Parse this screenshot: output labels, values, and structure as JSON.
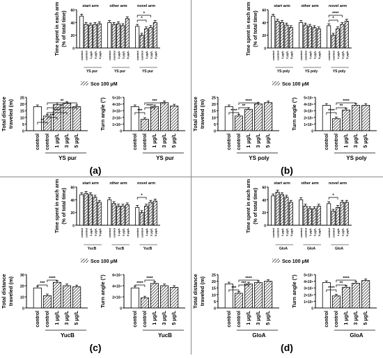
{
  "legend_label": "Sco 100 μM",
  "panels": [
    {
      "letter": "(a)",
      "compound": "YS pur",
      "arms": {
        "type": "bar",
        "ylabel": "Time spent in each arm",
        "ylabel2": "(% of total time)",
        "groups": [
          "start arm",
          "other arm",
          "novel arm"
        ],
        "categories": [
          "control",
          "control",
          "1 μg/L",
          "3 μg/L",
          "5 μg/L"
        ],
        "ylim": [
          0,
          60
        ],
        "yticks": [
          0,
          20,
          40,
          60
        ],
        "values": [
          [
            50,
            37,
            36,
            37,
            38
          ],
          [
            40,
            37,
            38,
            35,
            46
          ],
          [
            34,
            20,
            30,
            32,
            40
          ]
        ],
        "sig": [
          "*",
          "*"
        ]
      },
      "distance": {
        "type": "bar",
        "ylabel": "Total distance",
        "ylabel2": "traveled (m)",
        "categories": [
          "control",
          "control",
          "1 μg/L",
          "3 μg/L",
          "5 μg/L"
        ],
        "ylim": [
          0,
          25
        ],
        "yticks": [
          0,
          5,
          10,
          15,
          20,
          25
        ],
        "values": [
          18,
          11,
          19.5,
          20.5,
          18
        ],
        "sig": [
          "**",
          "***",
          "****",
          "*",
          "**"
        ]
      },
      "turn": {
        "type": "bar",
        "ylabel": "Turn angle (°)",
        "categories": [
          "control",
          "control",
          "1 μg/L",
          "3 μg/L",
          "5 μg/L"
        ],
        "ylim": [
          0,
          50000
        ],
        "yticks": [
          "0",
          "1×10⁴",
          "2×10⁴",
          "3×10⁴",
          "4×10⁴",
          "5×10⁴"
        ],
        "values": [
          36000,
          17000,
          36000,
          42000,
          37000
        ],
        "sig": [
          "***",
          "****",
          "***"
        ]
      }
    },
    {
      "letter": "(b)",
      "compound": "YS poly",
      "arms": {
        "type": "bar",
        "ylabel": "Time spent in each arm",
        "ylabel2": "(% of total time)",
        "groups": [
          "start arm",
          "other arm",
          "novel arm"
        ],
        "categories": [
          "control",
          "control",
          "1 μg/L",
          "3 μg/L",
          "5 μg/L"
        ],
        "ylim": [
          0,
          60
        ],
        "yticks": [
          0,
          20,
          40,
          60
        ],
        "values": [
          [
            50,
            42,
            40,
            36,
            32
          ],
          [
            40,
            36,
            34,
            32,
            30
          ],
          [
            35,
            20,
            30,
            37,
            42
          ]
        ],
        "sig": [
          "*",
          "****"
        ]
      },
      "distance": {
        "type": "bar",
        "ylabel": "Total distance",
        "ylabel2": "traveled (m)",
        "categories": [
          "control",
          "control",
          "1 μg/L",
          "3 μg/L",
          "5 μg/L"
        ],
        "ylim": [
          0,
          25
        ],
        "yticks": [
          0,
          5,
          10,
          15,
          20,
          25
        ],
        "values": [
          18,
          11,
          16,
          20,
          21
        ],
        "sig": [
          "****",
          "**",
          "****"
        ]
      },
      "turn": {
        "type": "bar",
        "ylabel": "Turn angle (°)",
        "categories": [
          "control",
          "control",
          "1 μg/L",
          "3 μg/L",
          "5 μg/L"
        ],
        "ylim": [
          0,
          50000
        ],
        "yticks": [
          "0",
          "1×10⁴",
          "2×10⁴",
          "3×10⁴",
          "4×10⁴",
          "5×10⁴"
        ],
        "values": [
          38000,
          18000,
          31000,
          38000,
          38000
        ],
        "sig": [
          "****",
          "**",
          "****"
        ]
      }
    },
    {
      "letter": "(c)",
      "compound": "YucB",
      "arms": {
        "type": "bar",
        "ylabel": "Time spent in each arm",
        "ylabel2": "(% of total time)",
        "groups": [
          "start arm",
          "other arm",
          "novel arm"
        ],
        "categories": [
          "control",
          "control",
          "1 μg/L",
          "3 μg/L",
          "5 μg/L"
        ],
        "ylim": [
          0,
          60
        ],
        "yticks": [
          0,
          20,
          40,
          60
        ],
        "values": [
          [
            48,
            50,
            48,
            44,
            36
          ],
          [
            40,
            34,
            30,
            30,
            32
          ],
          [
            28,
            20,
            30,
            36,
            38
          ]
        ],
        "sig": [
          "*",
          ""
        ]
      },
      "distance": {
        "type": "bar",
        "ylabel": "Total distance",
        "ylabel2": "traveled (m)",
        "categories": [
          "control",
          "control",
          "1 μg/L",
          "3 μg/L",
          "5 μg/L"
        ],
        "ylim": [
          0,
          30
        ],
        "yticks": [
          0,
          10,
          20,
          30
        ],
        "values": [
          18,
          11,
          23,
          20,
          19
        ],
        "sig": [
          "***",
          "****"
        ]
      },
      "turn": {
        "type": "bar",
        "ylabel": "Turn angle (°)",
        "categories": [
          "control",
          "control",
          "1 μg/L",
          "3 μg/L",
          "5 μg/L"
        ],
        "ylim": [
          0,
          60000
        ],
        "yticks": [
          "0",
          "2×10⁴",
          "4×10⁴",
          "6×10⁴"
        ],
        "values": [
          36000,
          18000,
          44000,
          40000,
          37000
        ],
        "sig": [
          "****",
          "****"
        ]
      }
    },
    {
      "letter": "(d)",
      "compound": "GloA",
      "arms": {
        "type": "bar",
        "ylabel": "Time spent in each arm",
        "ylabel2": "(% of total time)",
        "groups": [
          "start arm",
          "other arm",
          "novel arm"
        ],
        "categories": [
          "control",
          "control",
          "1 μg/L",
          "3 μg/L",
          "5 μg/L"
        ],
        "ylim": [
          0,
          60
        ],
        "yticks": [
          0,
          20,
          40,
          60
        ],
        "values": [
          [
            46,
            52,
            48,
            44,
            36
          ],
          [
            40,
            30,
            26,
            26,
            30
          ],
          [
            34,
            22,
            28,
            36,
            36
          ]
        ],
        "sig": [
          "*",
          ""
        ]
      },
      "distance": {
        "type": "bar",
        "ylabel": "Total distance",
        "ylabel2": "traveled (m)",
        "categories": [
          "control",
          "control",
          "1 μg/L",
          "3 μg/L",
          "5 μg/L"
        ],
        "ylim": [
          0,
          25
        ],
        "yticks": [
          0,
          5,
          10,
          15,
          20,
          25
        ],
        "values": [
          18,
          11,
          18,
          19,
          20
        ],
        "sig": [
          "***",
          "***",
          "****"
        ]
      },
      "turn": {
        "type": "bar",
        "ylabel": "Turn angle (°)",
        "categories": [
          "control",
          "control",
          "1 μg/L",
          "3 μg/L",
          "5 μg/L"
        ],
        "ylim": [
          0,
          50000
        ],
        "yticks": [
          "0",
          "1×10⁴",
          "2×10⁴",
          "3×10⁴",
          "4×10⁴",
          "5×10⁴"
        ],
        "values": [
          38000,
          18000,
          31000,
          37000,
          41000
        ],
        "sig": [
          "****",
          "**",
          "****"
        ]
      }
    }
  ],
  "chart_data": [
    {
      "type": "bar",
      "panel": "(a)",
      "title": "",
      "xlabel": "YS pur",
      "ylabel": "Total distance traveled (m)",
      "categories": [
        "control",
        "control",
        "1 μg/L",
        "3 μg/L",
        "5 μg/L"
      ],
      "values": [
        18,
        11,
        19.5,
        20.5,
        18
      ],
      "ylim": [
        0,
        25
      ]
    },
    {
      "type": "bar",
      "panel": "(a)",
      "title": "",
      "xlabel": "YS pur",
      "ylabel": "Turn angle (°)",
      "categories": [
        "control",
        "control",
        "1 μg/L",
        "3 μg/L",
        "5 μg/L"
      ],
      "values": [
        36000,
        17000,
        36000,
        42000,
        37000
      ],
      "ylim": [
        0,
        50000
      ]
    },
    {
      "type": "bar",
      "panel": "(b)",
      "title": "",
      "xlabel": "YS poly",
      "ylabel": "Total distance traveled (m)",
      "categories": [
        "control",
        "control",
        "1 μg/L",
        "3 μg/L",
        "5 μg/L"
      ],
      "values": [
        18,
        11,
        16,
        20,
        21
      ],
      "ylim": [
        0,
        25
      ]
    },
    {
      "type": "bar",
      "panel": "(b)",
      "title": "",
      "xlabel": "YS poly",
      "ylabel": "Turn angle (°)",
      "categories": [
        "control",
        "control",
        "1 μg/L",
        "3 μg/L",
        "5 μg/L"
      ],
      "values": [
        38000,
        18000,
        31000,
        38000,
        38000
      ],
      "ylim": [
        0,
        50000
      ]
    },
    {
      "type": "bar",
      "panel": "(c)",
      "title": "",
      "xlabel": "YucB",
      "ylabel": "Total distance traveled (m)",
      "categories": [
        "control",
        "control",
        "1 μg/L",
        "3 μg/L",
        "5 μg/L"
      ],
      "values": [
        18,
        11,
        23,
        20,
        19
      ],
      "ylim": [
        0,
        30
      ]
    },
    {
      "type": "bar",
      "panel": "(c)",
      "title": "",
      "xlabel": "YucB",
      "ylabel": "Turn angle (°)",
      "categories": [
        "control",
        "control",
        "1 μg/L",
        "3 μg/L",
        "5 μg/L"
      ],
      "values": [
        36000,
        18000,
        44000,
        40000,
        37000
      ],
      "ylim": [
        0,
        60000
      ]
    },
    {
      "type": "bar",
      "panel": "(d)",
      "title": "",
      "xlabel": "GloA",
      "ylabel": "Total distance traveled (m)",
      "categories": [
        "control",
        "control",
        "1 μg/L",
        "3 μg/L",
        "5 μg/L"
      ],
      "values": [
        18,
        11,
        18,
        19,
        20
      ],
      "ylim": [
        0,
        25
      ]
    },
    {
      "type": "bar",
      "panel": "(d)",
      "title": "",
      "xlabel": "GloA",
      "ylabel": "Turn angle (°)",
      "categories": [
        "control",
        "control",
        "1 μg/L",
        "3 μg/L",
        "5 μg/L"
      ],
      "values": [
        38000,
        18000,
        31000,
        37000,
        41000
      ],
      "ylim": [
        0,
        50000
      ]
    }
  ]
}
